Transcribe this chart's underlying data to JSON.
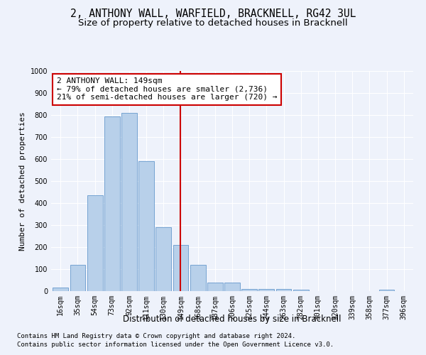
{
  "title1": "2, ANTHONY WALL, WARFIELD, BRACKNELL, RG42 3UL",
  "title2": "Size of property relative to detached houses in Bracknell",
  "xlabel": "Distribution of detached houses by size in Bracknell",
  "ylabel": "Number of detached properties",
  "bar_labels": [
    "16sqm",
    "35sqm",
    "54sqm",
    "73sqm",
    "92sqm",
    "111sqm",
    "130sqm",
    "149sqm",
    "168sqm",
    "187sqm",
    "206sqm",
    "225sqm",
    "244sqm",
    "263sqm",
    "282sqm",
    "301sqm",
    "320sqm",
    "339sqm",
    "358sqm",
    "377sqm",
    "396sqm"
  ],
  "bar_values": [
    15,
    120,
    435,
    795,
    810,
    590,
    290,
    210,
    120,
    40,
    40,
    10,
    10,
    10,
    5,
    0,
    0,
    0,
    0,
    5,
    0
  ],
  "bar_color": "#b8d0ea",
  "bar_edge_color": "#6699cc",
  "vline_x": 7,
  "vline_color": "#cc0000",
  "annotation_text": "2 ANTHONY WALL: 149sqm\n← 79% of detached houses are smaller (2,736)\n21% of semi-detached houses are larger (720) →",
  "annotation_box_color": "#ffffff",
  "annotation_box_edge": "#cc0000",
  "ylim": [
    0,
    1000
  ],
  "yticks": [
    0,
    100,
    200,
    300,
    400,
    500,
    600,
    700,
    800,
    900,
    1000
  ],
  "bg_color": "#eef2fb",
  "footer1": "Contains HM Land Registry data © Crown copyright and database right 2024.",
  "footer2": "Contains public sector information licensed under the Open Government Licence v3.0.",
  "title1_fontsize": 10.5,
  "title2_fontsize": 9.5,
  "xlabel_fontsize": 8.5,
  "ylabel_fontsize": 8,
  "tick_fontsize": 7,
  "annotation_fontsize": 8,
  "footer_fontsize": 6.5
}
